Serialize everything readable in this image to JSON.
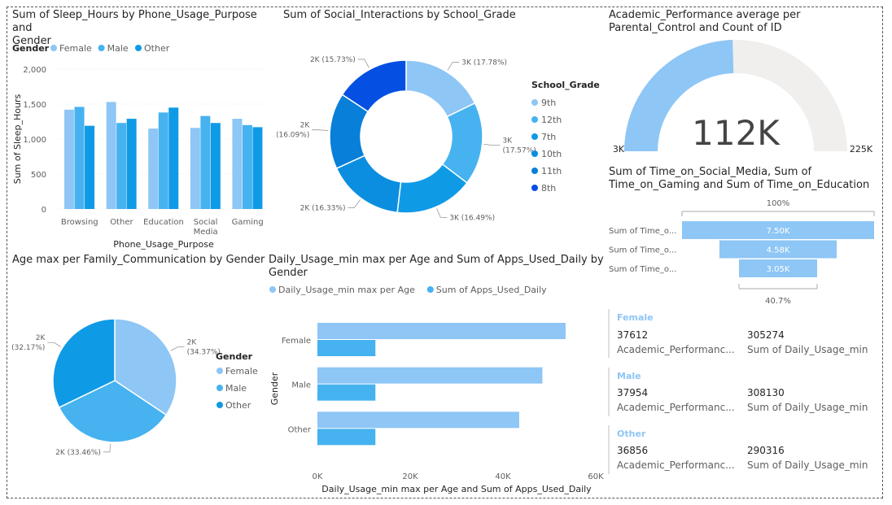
{
  "colors": {
    "female": "#8ec6f5",
    "male": "#46b2f0",
    "other": "#0f9ae6",
    "dark": "#0550e2",
    "text": "#252423",
    "muted": "#605e5c",
    "grid": "#e1dfdd",
    "gaugeTrack": "#f0efee"
  },
  "bar1": {
    "title_line1": "Sum of Sleep_Hours by Phone_Usage_Purpose and",
    "title_line2": "Gender",
    "legend_title": "Gender",
    "ylabel": "Sum of Sleep_Hours",
    "xlabel": "Phone_Usage_Purpose",
    "chart_data": {
      "type": "bar",
      "categories": [
        "Browsing",
        "Other",
        "Education",
        "Social Media",
        "Gaming"
      ],
      "category_lines": [
        [
          "Browsing"
        ],
        [
          "Other"
        ],
        [
          "Education"
        ],
        [
          "Social",
          "Media"
        ],
        [
          "Gaming"
        ]
      ],
      "series": [
        {
          "name": "Female",
          "values": [
            1420,
            1530,
            1150,
            1160,
            1290
          ]
        },
        {
          "name": "Male",
          "values": [
            1460,
            1230,
            1380,
            1330,
            1200
          ]
        },
        {
          "name": "Other",
          "values": [
            1190,
            1290,
            1450,
            1230,
            1170
          ]
        }
      ],
      "yticks": [
        0,
        500,
        1000,
        1500,
        2000
      ],
      "ytick_labels": [
        "0",
        "500",
        "1,000",
        "1,500",
        "2,000"
      ],
      "ylim": [
        0,
        2000
      ]
    }
  },
  "donut": {
    "title": "Sum of Social_Interactions by School_Grade",
    "legend_title": "School_Grade",
    "chart_data": {
      "type": "pie",
      "labels": [
        "9th",
        "12th",
        "7th",
        "10th",
        "11th",
        "8th"
      ],
      "values": [
        17.78,
        17.57,
        16.49,
        16.33,
        16.09,
        15.73
      ],
      "slice_labels": [
        [
          "3K (17.78%)"
        ],
        [
          "3K",
          "(17.57%)"
        ],
        [
          "3K (16.49%)"
        ],
        [
          "2K (16.33%)"
        ],
        [
          "2K",
          "(16.09%)"
        ],
        [
          "2K (15.73%)"
        ]
      ]
    }
  },
  "gauge": {
    "title_line1": "Academic_Performance average per",
    "title_line2": "Parental_Control and Count of ID",
    "value_label": "112K",
    "min_label": "3K",
    "max_label": "225K",
    "chart_data": {
      "type": "gauge",
      "min": 3,
      "max": 225,
      "value": 112
    }
  },
  "funnel": {
    "title_line1": "Sum of Time_on_Social_Media, Sum of",
    "title_line2": "Time_on_Gaming and Sum of Time_on_Education",
    "top_pct": "100%",
    "bottom_pct": "40.7%",
    "chart_data": {
      "type": "funnel",
      "categories": [
        "Sum of Time_o...",
        "Sum of Time_o...",
        "Sum of Time_o..."
      ],
      "values": [
        7.5,
        4.58,
        3.05
      ],
      "value_labels": [
        "7.50K",
        "4.58K",
        "3.05K"
      ]
    }
  },
  "pie2": {
    "title": "Age max per Family_Communication by Gender",
    "legend_title": "Gender",
    "chart_data": {
      "type": "pie",
      "labels": [
        "Female",
        "Male",
        "Other"
      ],
      "values": [
        34.37,
        33.46,
        32.17
      ],
      "slice_labels": [
        [
          "2K",
          "(34.37%)"
        ],
        [
          "2K (33.46%)"
        ],
        [
          "2K",
          "(32.17%)"
        ]
      ]
    }
  },
  "hbar": {
    "title_line1": "Daily_Usage_min max per Age and Sum of Apps_Used_Daily by",
    "title_line2": "Gender",
    "legend": [
      "Daily_Usage_min max per Age",
      "Sum of Apps_Used_Daily"
    ],
    "ylabel": "Gender",
    "xlabel": "Daily_Usage_min max per Age and Sum of Apps_Used_Daily",
    "chart_data": {
      "type": "bar",
      "orientation": "horizontal",
      "categories": [
        "Female",
        "Male",
        "Other"
      ],
      "series": [
        {
          "name": "Daily_Usage_min max per Age",
          "values": [
            53500,
            48500,
            43500
          ]
        },
        {
          "name": "Sum of Apps_Used_Daily",
          "values": [
            12500,
            12500,
            12500
          ]
        }
      ],
      "xticks": [
        0,
        20000,
        40000,
        60000
      ],
      "xtick_labels": [
        "0K",
        "20K",
        "40K",
        "60K"
      ],
      "xlim": [
        0,
        60000
      ]
    }
  },
  "cards": [
    {
      "category": "Female",
      "v1": "37612",
      "l1": "Academic_Performanc...",
      "v2": "305274",
      "l2": "Sum of Daily_Usage_min"
    },
    {
      "category": "Male",
      "v1": "37954",
      "l1": "Academic_Performanc...",
      "v2": "308130",
      "l2": "Sum of Daily_Usage_min"
    },
    {
      "category": "Other",
      "v1": "36856",
      "l1": "Academic_Performanc...",
      "v2": "290316",
      "l2": "Sum of Daily_Usage_min"
    }
  ]
}
